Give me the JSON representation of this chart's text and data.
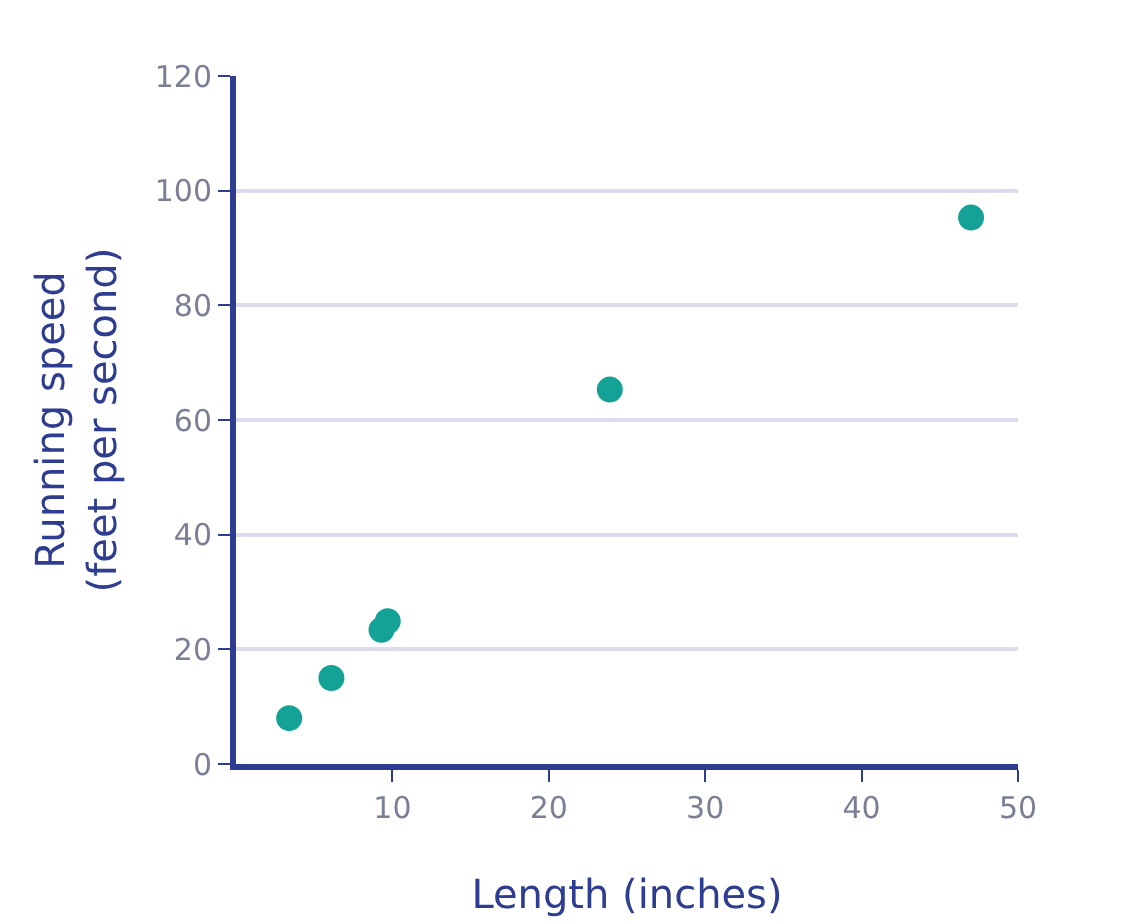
{
  "chart_data": {
    "type": "scatter",
    "xlabel": "Length (inches)",
    "ylabel": "Running speed\n(feet per second)",
    "x": [
      3.4,
      6.1,
      9.3,
      9.7,
      23.9,
      47
    ],
    "values": [
      8,
      15,
      23.4,
      24.9,
      65.3,
      95.3
    ],
    "color": "#13a295",
    "marker": "circle",
    "xlim": [
      0,
      50
    ],
    "xticks": [
      10,
      20,
      30,
      40,
      50
    ],
    "ylim": [
      0,
      120
    ],
    "yticks": [
      0,
      20,
      40,
      60,
      80,
      100,
      120
    ],
    "grid": "y"
  }
}
